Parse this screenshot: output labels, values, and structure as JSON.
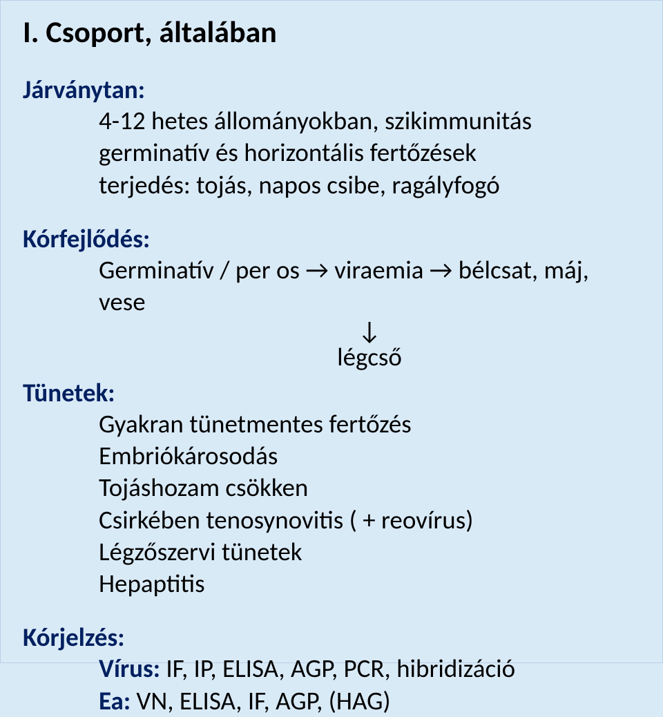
{
  "background_color": "#d9eaf7",
  "title_color": "#000000",
  "label_color": "#002060",
  "body_color": "#000000",
  "title_fontsize": 44,
  "label_fontsize": 37,
  "body_fontsize": 37,
  "title": "I. Csoport, általában",
  "jarvanytan": {
    "label": "Járványtan:",
    "line1": "4-12 hetes állományokban, szikimmunitás",
    "line2": "germinatív és horizontális fertőzések",
    "line3": "terjedés: tojás, napos csibe, ragályfogó"
  },
  "korfejlodes": {
    "label": "Kórfejlődés:",
    "line1": "Germinatív / per os → viraemia → bélcsat, máj, vese",
    "arrow": "↓",
    "line2": "légcső"
  },
  "tunetek": {
    "label": "Tünetek:",
    "l1": "Gyakran tünetmentes fertőzés",
    "l2": "Embriókárosodás",
    "l3": "Tojáshozam csökken",
    "l4": "Csirkében tenosynovitis ( + reovírus)",
    "l5": "Légzőszervi tünetek",
    "l6": "Hepaptitis"
  },
  "korjelzes": {
    "label": "Kórjelzés:",
    "virus_label": "Vírus:",
    "virus_rest": " IF, IP, ELISA, AGP, PCR, hibridizáció",
    "ea_label": "Ea:",
    "ea_rest": " VN, ELISA, IF, AGP, (HAG)"
  }
}
